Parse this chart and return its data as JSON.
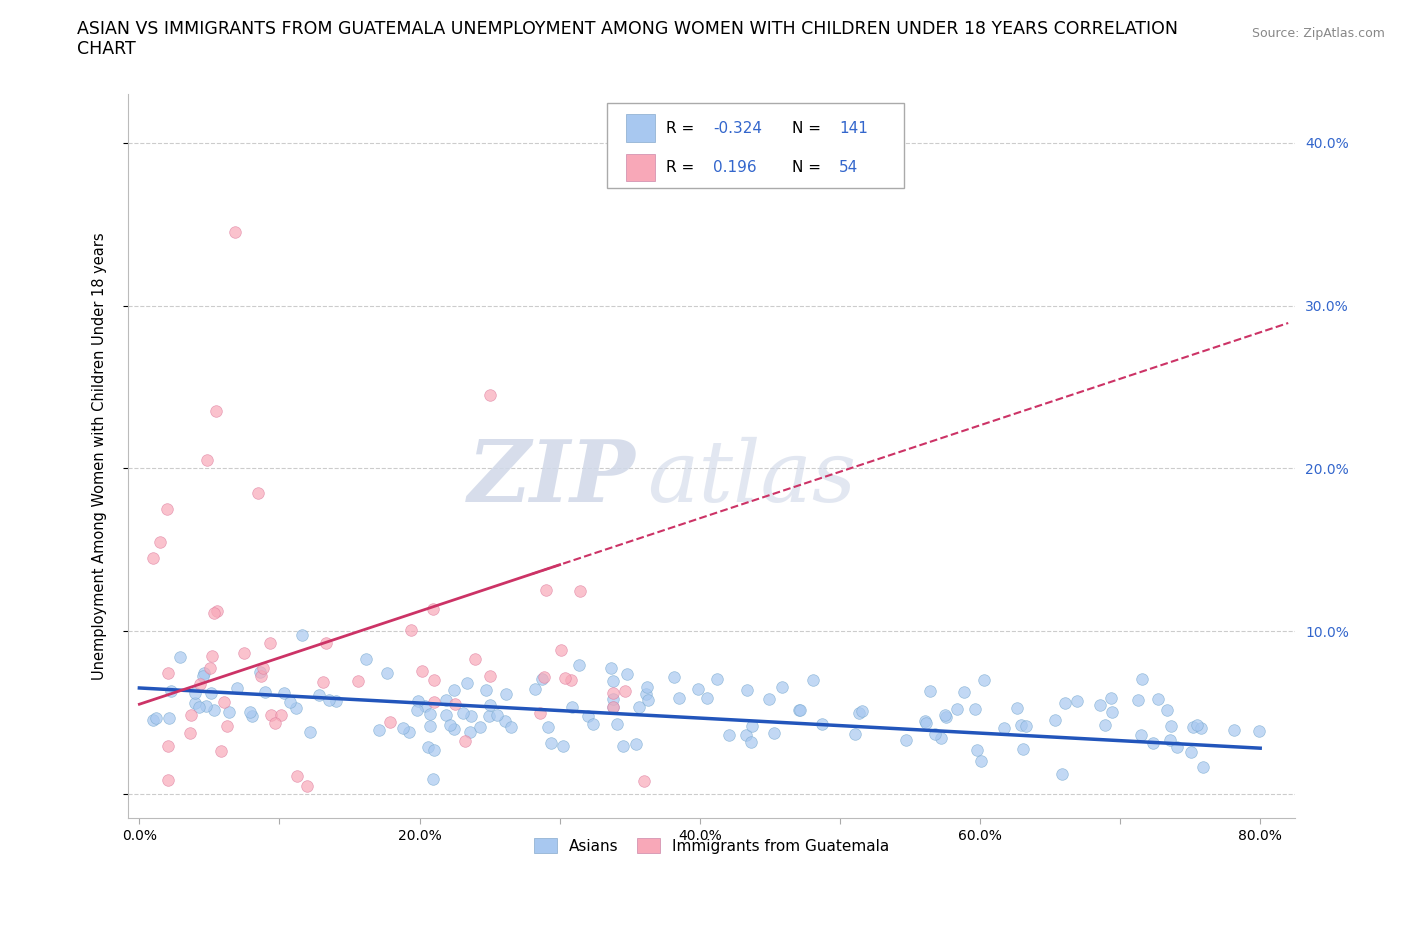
{
  "title_line1": "ASIAN VS IMMIGRANTS FROM GUATEMALA UNEMPLOYMENT AMONG WOMEN WITH CHILDREN UNDER 18 YEARS CORRELATION",
  "title_line2": "CHART",
  "source": "Source: ZipAtlas.com",
  "ylabel": "Unemployment Among Women with Children Under 18 years",
  "xlim": [
    -0.008,
    0.825
  ],
  "ylim": [
    -0.015,
    0.43
  ],
  "xticks": [
    0.0,
    0.1,
    0.2,
    0.3,
    0.4,
    0.5,
    0.6,
    0.7,
    0.8
  ],
  "yticks": [
    0.0,
    0.1,
    0.2,
    0.3,
    0.4
  ],
  "ytick_labels": [
    "",
    "10.0%",
    "20.0%",
    "30.0%",
    "40.0%"
  ],
  "xtick_labels": [
    "0.0%",
    "",
    "20.0%",
    "",
    "40.0%",
    "",
    "60.0%",
    "",
    "80.0%"
  ],
  "asian_color": "#a8c8f0",
  "asian_edge_color": "#7aaad0",
  "guatemala_color": "#f8a8b8",
  "guatemala_edge_color": "#e080a0",
  "asian_R": -0.324,
  "asian_N": 141,
  "guatemala_R": 0.196,
  "guatemala_N": 54,
  "asian_line_color": "#2255bb",
  "guatemala_line_color": "#cc3366",
  "watermark_zip": "ZIP",
  "watermark_atlas": "atlas",
  "background_color": "#ffffff",
  "grid_color": "#cccccc",
  "legend_label_asian": "Asians",
  "legend_label_guatemala": "Immigrants from Guatemala",
  "title_fontsize": 12.5,
  "axis_label_fontsize": 10.5,
  "tick_fontsize": 10,
  "stat_color": "#3366cc"
}
